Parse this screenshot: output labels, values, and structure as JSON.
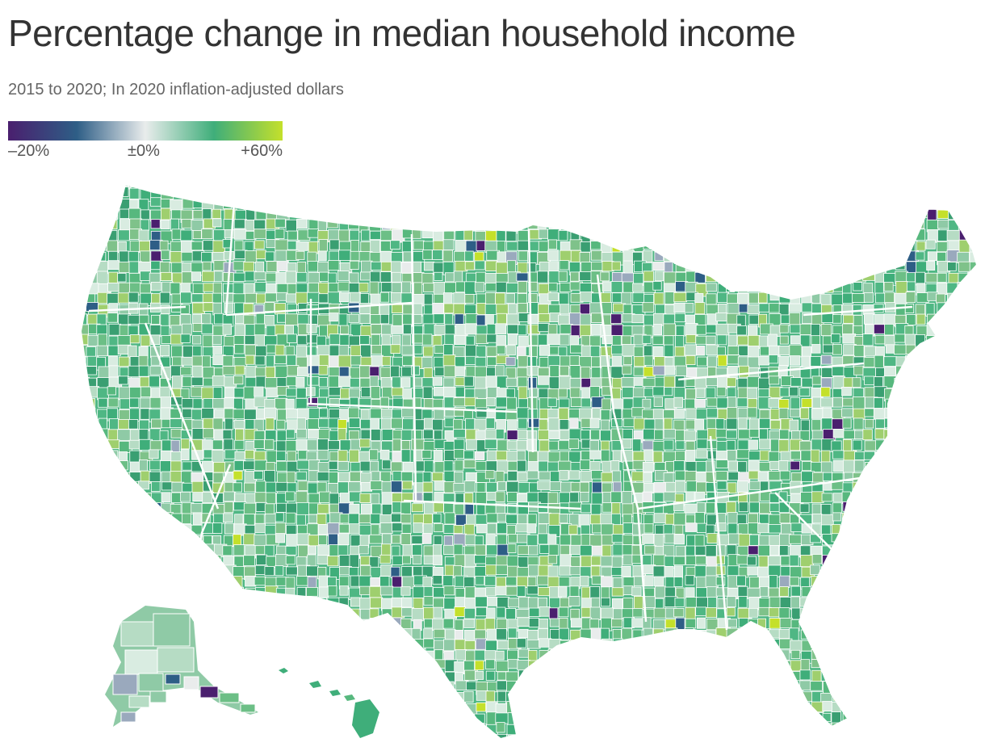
{
  "header": {
    "title": "Percentage change in median household income",
    "subtitle": "2015 to 2020; In 2020 inflation-adjusted dollars"
  },
  "legend": {
    "min_label": "–20%",
    "mid_label": "±0%",
    "max_label": "+60%",
    "min_value": -20,
    "mid_value": 0,
    "max_value": 60,
    "color_stops": [
      "#4a1f6e",
      "#2e5e86",
      "#e9ecec",
      "#3fae7a",
      "#c4e02b"
    ]
  },
  "map": {
    "regions": [
      "Contiguous United States",
      "Alaska",
      "Hawaii"
    ]
  }
}
